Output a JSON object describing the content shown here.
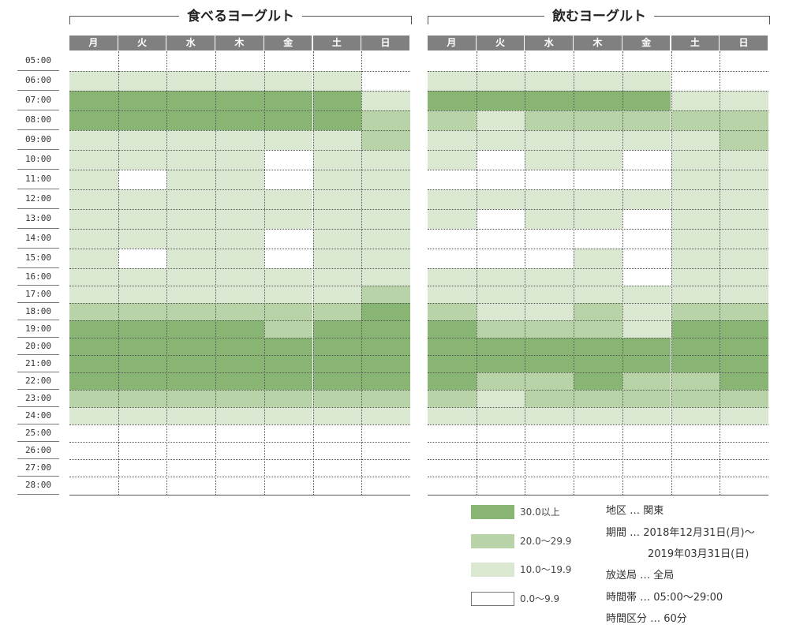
{
  "chart_data": [
    {
      "type": "heatmap",
      "title": "食べるヨーグルト",
      "days": [
        "月",
        "火",
        "水",
        "木",
        "金",
        "土",
        "日"
      ],
      "times": [
        "05:00",
        "06:00",
        "07:00",
        "08:00",
        "09:00",
        "10:00",
        "11:00",
        "12:00",
        "13:00",
        "14:00",
        "15:00",
        "16:00",
        "17:00",
        "18:00",
        "19:00",
        "20:00",
        "21:00",
        "22:00",
        "23:00",
        "24:00",
        "25:00",
        "26:00",
        "27:00",
        "28:00"
      ],
      "levels": [
        [
          0,
          0,
          0,
          0,
          0,
          0,
          0
        ],
        [
          1,
          1,
          1,
          1,
          1,
          1,
          0
        ],
        [
          3,
          3,
          3,
          3,
          3,
          3,
          1
        ],
        [
          3,
          3,
          3,
          3,
          3,
          3,
          2
        ],
        [
          1,
          1,
          1,
          1,
          1,
          1,
          2
        ],
        [
          1,
          1,
          1,
          1,
          0,
          1,
          1
        ],
        [
          1,
          0,
          1,
          1,
          0,
          1,
          1
        ],
        [
          1,
          1,
          1,
          1,
          1,
          1,
          1
        ],
        [
          1,
          1,
          1,
          1,
          1,
          1,
          1
        ],
        [
          1,
          1,
          1,
          1,
          0,
          1,
          1
        ],
        [
          1,
          0,
          1,
          1,
          0,
          1,
          1
        ],
        [
          1,
          1,
          1,
          1,
          1,
          1,
          1
        ],
        [
          1,
          1,
          1,
          1,
          1,
          1,
          2
        ],
        [
          2,
          2,
          2,
          2,
          2,
          2,
          3
        ],
        [
          3,
          3,
          3,
          3,
          2,
          3,
          3
        ],
        [
          3,
          3,
          3,
          3,
          3,
          3,
          3
        ],
        [
          3,
          3,
          3,
          3,
          3,
          3,
          3
        ],
        [
          3,
          3,
          3,
          3,
          3,
          3,
          3
        ],
        [
          2,
          2,
          2,
          2,
          2,
          2,
          2
        ],
        [
          1,
          1,
          1,
          1,
          1,
          1,
          1
        ],
        [
          0,
          0,
          0,
          0,
          0,
          0,
          0
        ],
        [
          0,
          0,
          0,
          0,
          0,
          0,
          0
        ],
        [
          0,
          0,
          0,
          0,
          0,
          0,
          0
        ],
        [
          0,
          0,
          0,
          0,
          0,
          0,
          0
        ]
      ]
    },
    {
      "type": "heatmap",
      "title": "飲むヨーグルト",
      "days": [
        "月",
        "火",
        "水",
        "木",
        "金",
        "土",
        "日"
      ],
      "times": [
        "05:00",
        "06:00",
        "07:00",
        "08:00",
        "09:00",
        "10:00",
        "11:00",
        "12:00",
        "13:00",
        "14:00",
        "15:00",
        "16:00",
        "17:00",
        "18:00",
        "19:00",
        "20:00",
        "21:00",
        "22:00",
        "23:00",
        "24:00",
        "25:00",
        "26:00",
        "27:00",
        "28:00"
      ],
      "levels": [
        [
          0,
          0,
          0,
          0,
          0,
          0,
          0
        ],
        [
          1,
          1,
          1,
          1,
          1,
          0,
          0
        ],
        [
          3,
          3,
          3,
          3,
          3,
          1,
          1
        ],
        [
          2,
          1,
          2,
          2,
          2,
          2,
          2
        ],
        [
          1,
          1,
          1,
          1,
          1,
          1,
          2
        ],
        [
          1,
          0,
          1,
          1,
          0,
          1,
          1
        ],
        [
          0,
          0,
          0,
          0,
          0,
          1,
          1
        ],
        [
          1,
          1,
          1,
          1,
          1,
          1,
          1
        ],
        [
          1,
          0,
          1,
          1,
          0,
          1,
          1
        ],
        [
          0,
          0,
          0,
          0,
          0,
          1,
          1
        ],
        [
          0,
          0,
          0,
          1,
          0,
          1,
          1
        ],
        [
          1,
          1,
          1,
          1,
          0,
          1,
          1
        ],
        [
          1,
          1,
          1,
          1,
          1,
          1,
          1
        ],
        [
          2,
          1,
          1,
          2,
          1,
          2,
          2
        ],
        [
          3,
          2,
          2,
          2,
          1,
          3,
          3
        ],
        [
          3,
          3,
          3,
          3,
          3,
          3,
          3
        ],
        [
          3,
          3,
          3,
          3,
          3,
          3,
          3
        ],
        [
          3,
          2,
          2,
          3,
          2,
          2,
          3
        ],
        [
          2,
          1,
          2,
          2,
          2,
          2,
          2
        ],
        [
          1,
          1,
          1,
          1,
          1,
          1,
          1
        ],
        [
          0,
          0,
          0,
          0,
          0,
          0,
          0
        ],
        [
          0,
          0,
          0,
          0,
          0,
          0,
          0
        ],
        [
          0,
          0,
          0,
          0,
          0,
          0,
          0
        ],
        [
          0,
          0,
          0,
          0,
          0,
          0,
          0
        ]
      ]
    }
  ],
  "colors": {
    "level_0": "#ffffff",
    "level_1": "#dae8d2",
    "level_2": "#b8d3a7",
    "level_3": "#88b574",
    "header": "#808080"
  },
  "legend": [
    {
      "level": 3,
      "label": "30.0以上"
    },
    {
      "level": 2,
      "label": "20.0〜29.9"
    },
    {
      "level": 1,
      "label": "10.0〜19.9"
    },
    {
      "level": 0,
      "label": "0.0〜9.9"
    }
  ],
  "info": {
    "region": "地区 … 関東",
    "period_1": "期間 … 2018年12月31日(月)〜",
    "period_2": "2019年03月31日(日)",
    "station": "放送局 … 全局",
    "time_band": "時間帯 … 05:00〜29:00",
    "time_unit": "時間区分 … 60分"
  }
}
